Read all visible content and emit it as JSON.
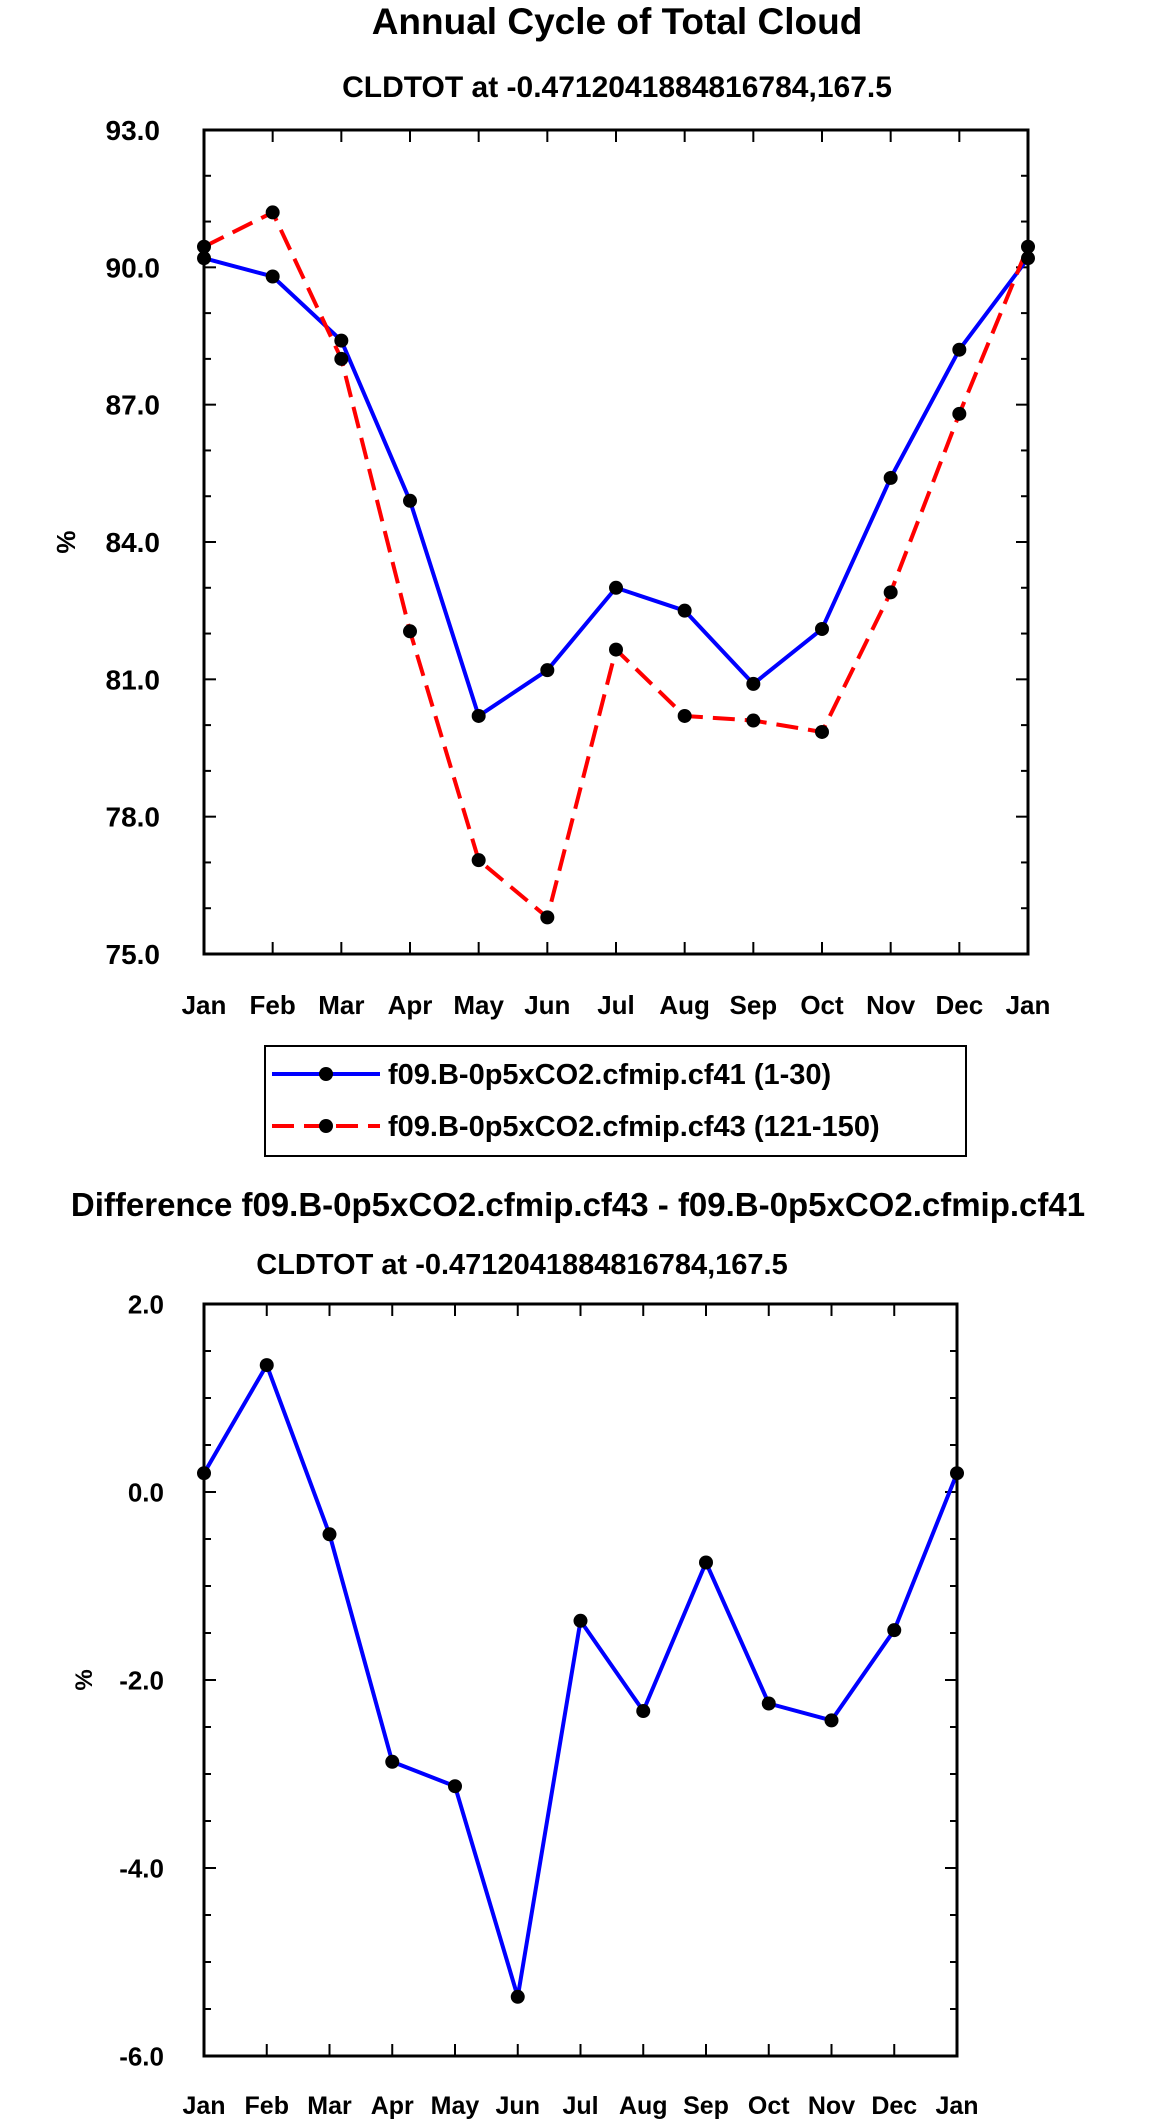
{
  "chart_data": [
    {
      "type": "line",
      "title": "Annual Cycle of Total Cloud",
      "subtitle": "CLDTOT at -0.4712041884816784,167.5",
      "xlabel": "",
      "ylabel": "%",
      "categories": [
        "Jan",
        "Feb",
        "Mar",
        "Apr",
        "May",
        "Jun",
        "Jul",
        "Aug",
        "Sep",
        "Oct",
        "Nov",
        "Dec",
        "Jan"
      ],
      "ylim": [
        75.0,
        93.0
      ],
      "yticks": [
        75.0,
        78.0,
        81.0,
        84.0,
        87.0,
        90.0,
        93.0
      ],
      "ytick_labels": [
        "75.0",
        "78.0",
        "81.0",
        "84.0",
        "87.0",
        "90.0",
        "93.0"
      ],
      "series": [
        {
          "name": "f09.B-0p5xCO2.cfmip.cf41 (1-30)",
          "color": "#0000ff",
          "dash": "solid",
          "values": [
            90.2,
            89.8,
            88.4,
            84.9,
            80.2,
            81.2,
            83.0,
            82.5,
            80.9,
            82.1,
            85.4,
            88.2,
            90.2
          ]
        },
        {
          "name": "f09.B-0p5xCO2.cfmip.cf43 (121-150)",
          "color": "#ff0000",
          "dash": "dashed",
          "values": [
            90.45,
            91.2,
            88.0,
            82.05,
            77.05,
            75.8,
            81.65,
            80.2,
            80.1,
            79.85,
            82.9,
            86.8,
            90.45
          ]
        }
      ],
      "legend": {
        "position": "bottom-center"
      }
    },
    {
      "type": "line",
      "title": "Difference f09.B-0p5xCO2.cfmip.cf43 - f09.B-0p5xCO2.cfmip.cf41",
      "subtitle": "CLDTOT at -0.4712041884816784,167.5",
      "xlabel": "",
      "ylabel": "%",
      "categories": [
        "Jan",
        "Feb",
        "Mar",
        "Apr",
        "May",
        "Jun",
        "Jul",
        "Aug",
        "Sep",
        "Oct",
        "Nov",
        "Dec",
        "Jan"
      ],
      "ylim": [
        -6.0,
        2.0
      ],
      "yticks": [
        -6.0,
        -4.0,
        -2.0,
        0.0,
        2.0
      ],
      "ytick_labels": [
        "-6.0",
        "-4.0",
        "-2.0",
        "0.0",
        "2.0"
      ],
      "series": [
        {
          "name": "difference",
          "color": "#0000ff",
          "dash": "solid",
          "values": [
            0.2,
            1.35,
            -0.45,
            -2.87,
            -3.13,
            -5.37,
            -1.37,
            -2.33,
            -0.75,
            -2.25,
            -2.43,
            -1.47,
            0.2
          ]
        }
      ]
    }
  ]
}
